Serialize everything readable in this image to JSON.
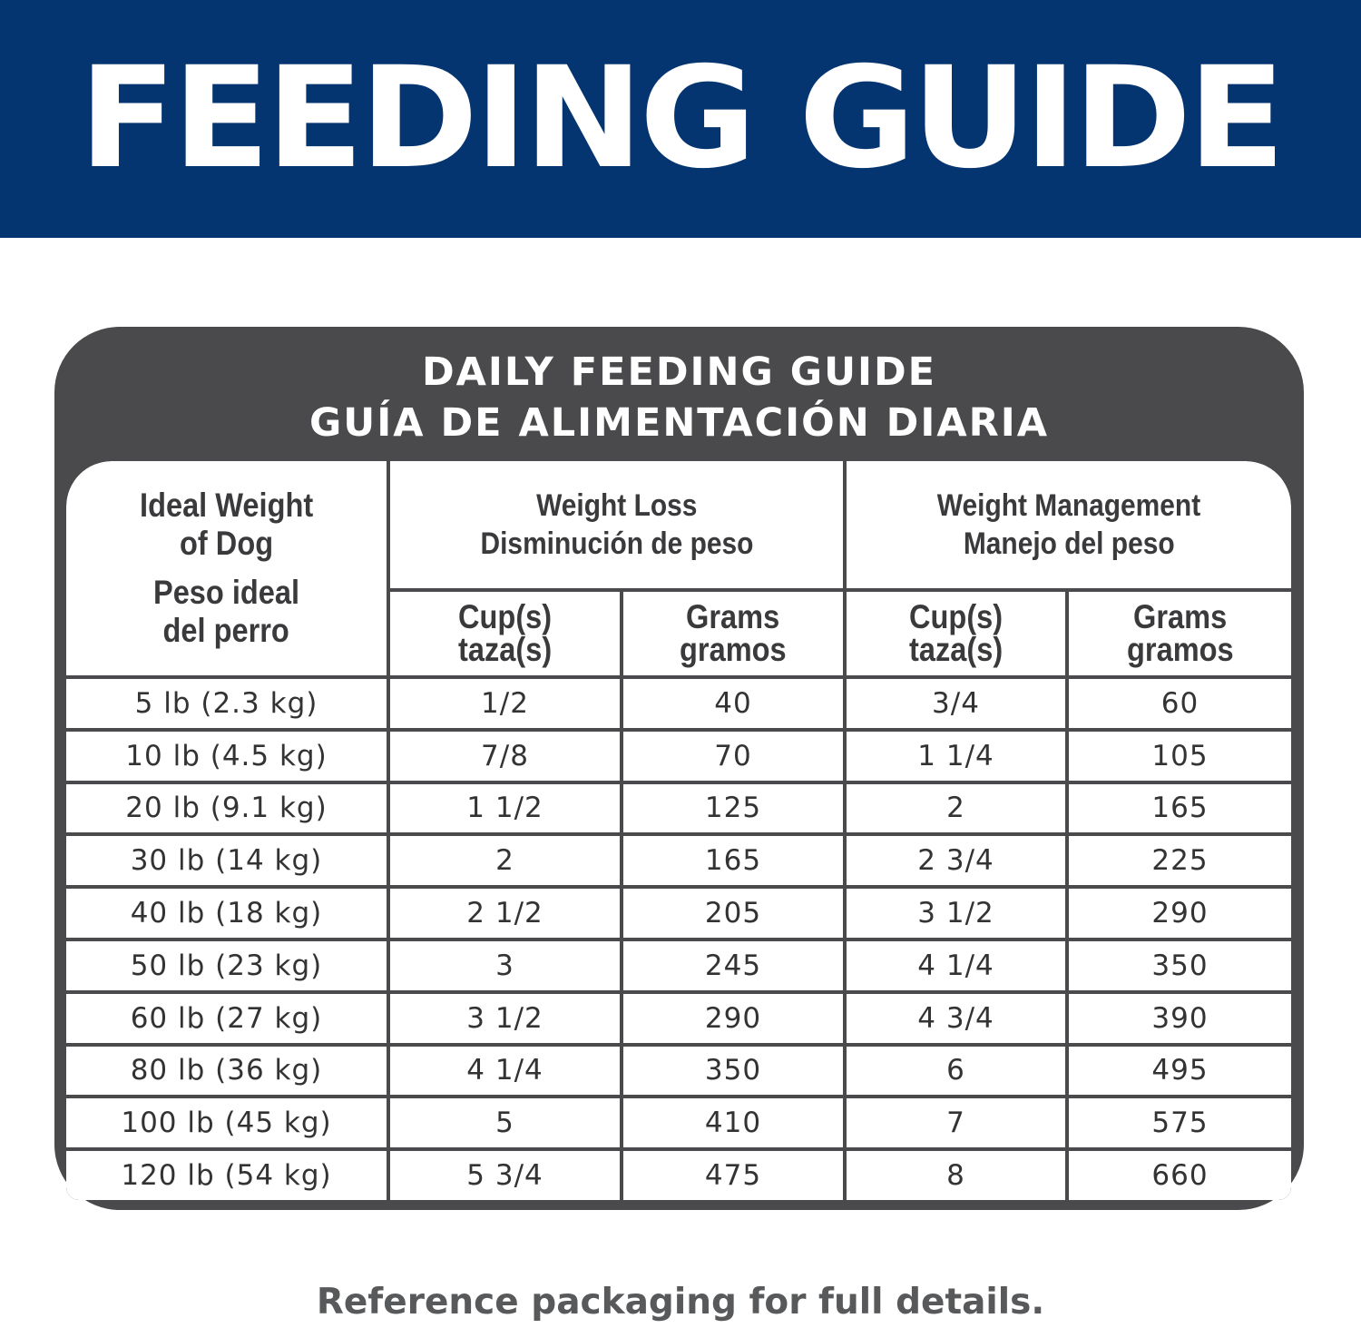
{
  "banner": {
    "title": "FEEDING GUIDE",
    "color": "#043570"
  },
  "panel": {
    "title_en": "DAILY FEEDING GUIDE",
    "title_es": "GUÍA DE ALIMENTACIÓN DIARIA",
    "color": "#4a4a4c"
  },
  "table": {
    "ideal_weight": {
      "en_1": "Ideal Weight",
      "en_2": "of Dog",
      "es_1": "Peso ideal",
      "es_2": "del perro"
    },
    "weight_loss": {
      "en": "Weight Loss",
      "es": "Disminución de peso"
    },
    "weight_management": {
      "en": "Weight Management",
      "es": "Manejo del peso"
    },
    "subheaders": [
      {
        "en": "Cup(s)",
        "es": "taza(s)"
      },
      {
        "en": "Grams",
        "es": "gramos"
      },
      {
        "en": "Cup(s)",
        "es": "taza(s)"
      },
      {
        "en": "Grams",
        "es": "gramos"
      }
    ],
    "rows": [
      [
        "5 lb (2.3 kg)",
        "1/2",
        "40",
        "3/4",
        "60"
      ],
      [
        "10 lb (4.5 kg)",
        "7/8",
        "70",
        "1 1/4",
        "105"
      ],
      [
        "20 lb (9.1 kg)",
        "1 1/2",
        "125",
        "2",
        "165"
      ],
      [
        "30 lb (14 kg)",
        "2",
        "165",
        "2 3/4",
        "225"
      ],
      [
        "40 lb (18 kg)",
        "2 1/2",
        "205",
        "3 1/2",
        "290"
      ],
      [
        "50 lb (23 kg)",
        "3",
        "245",
        "4 1/4",
        "350"
      ],
      [
        "60 lb (27 kg)",
        "3 1/2",
        "290",
        "4 3/4",
        "390"
      ],
      [
        "80 lb (36 kg)",
        "4 1/4",
        "350",
        "6",
        "495"
      ],
      [
        "100 lb (45 kg)",
        "5",
        "410",
        "7",
        "575"
      ],
      [
        "120 lb (54 kg)",
        "5 3/4",
        "475",
        "8",
        "660"
      ]
    ]
  },
  "footer": "Reference packaging for full details."
}
